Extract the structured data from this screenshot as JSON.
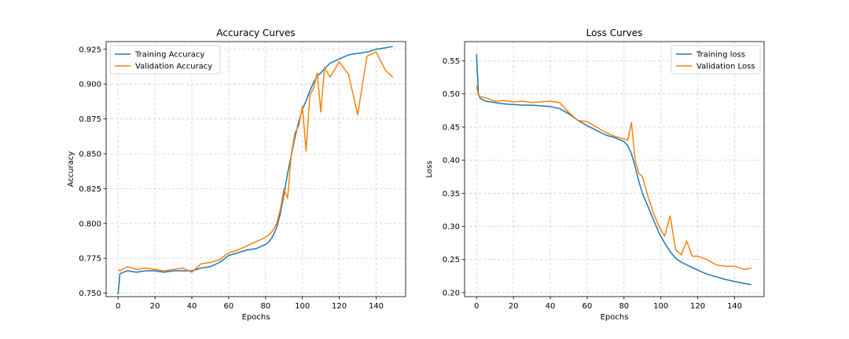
{
  "chart_data": [
    {
      "type": "line",
      "title": "Accuracy Curves",
      "xlabel": "Epochs",
      "ylabel": "Accuracy",
      "xlim": [
        -6.5,
        156
      ],
      "ylim": [
        0.7475,
        0.9305
      ],
      "xticks": [
        0,
        20,
        40,
        60,
        80,
        100,
        120,
        140
      ],
      "yticks": [
        0.75,
        0.775,
        0.8,
        0.825,
        0.85,
        0.875,
        0.9,
        0.925
      ],
      "ytick_labels": [
        "0.750",
        "0.775",
        "0.800",
        "0.825",
        "0.850",
        "0.875",
        "0.900",
        "0.925"
      ],
      "grid": true,
      "legend": "top-left",
      "x": [
        0,
        1,
        5,
        10,
        15,
        20,
        25,
        30,
        35,
        40,
        45,
        50,
        55,
        60,
        65,
        70,
        75,
        80,
        82,
        84,
        86,
        88,
        90,
        92,
        94,
        96,
        98,
        100,
        102,
        104,
        106,
        108,
        110,
        112,
        115,
        120,
        125,
        130,
        135,
        140,
        145,
        149
      ],
      "series": [
        {
          "name": "Training Accuracy",
          "color": "#1f77b4",
          "values": [
            0.749,
            0.764,
            0.766,
            0.765,
            0.766,
            0.766,
            0.765,
            0.766,
            0.766,
            0.766,
            0.768,
            0.769,
            0.772,
            0.777,
            0.779,
            0.781,
            0.782,
            0.785,
            0.787,
            0.791,
            0.797,
            0.807,
            0.821,
            0.836,
            0.849,
            0.862,
            0.873,
            0.882,
            0.888,
            0.895,
            0.901,
            0.906,
            0.908,
            0.911,
            0.915,
            0.918,
            0.921,
            0.922,
            0.923,
            0.925,
            0.926,
            0.927
          ]
        },
        {
          "name": "Validation Accuracy",
          "color": "#ff7f0e",
          "values": [
            0.767,
            0.766,
            0.769,
            0.767,
            0.768,
            0.767,
            0.766,
            0.767,
            0.768,
            0.765,
            0.771,
            0.772,
            0.774,
            0.779,
            0.781,
            0.784,
            0.787,
            0.79,
            0.792,
            0.795,
            0.8,
            0.81,
            0.825,
            0.818,
            0.85,
            0.865,
            0.87,
            0.884,
            0.852,
            0.892,
            0.897,
            0.908,
            0.88,
            0.912,
            0.905,
            0.916,
            0.907,
            0.878,
            0.92,
            0.923,
            0.91,
            0.905
          ]
        }
      ]
    },
    {
      "type": "line",
      "title": "Loss Curves",
      "xlabel": "Epochs",
      "ylabel": "Loss",
      "xlim": [
        -6.5,
        156
      ],
      "ylim": [
        0.194,
        0.579
      ],
      "xticks": [
        0,
        20,
        40,
        60,
        80,
        100,
        120,
        140
      ],
      "yticks": [
        0.2,
        0.25,
        0.3,
        0.35,
        0.4,
        0.45,
        0.5,
        0.55
      ],
      "ytick_labels": [
        "0.20",
        "0.25",
        "0.30",
        "0.35",
        "0.40",
        "0.45",
        "0.50",
        "0.55"
      ],
      "grid": true,
      "legend": "top-right",
      "x": [
        0,
        1,
        2,
        5,
        10,
        15,
        20,
        25,
        30,
        35,
        40,
        45,
        50,
        55,
        60,
        65,
        70,
        75,
        80,
        82,
        84,
        86,
        88,
        90,
        93,
        96,
        99,
        102,
        105,
        108,
        111,
        114,
        117,
        120,
        125,
        130,
        135,
        140,
        145,
        149
      ],
      "series": [
        {
          "name": "Training loss",
          "color": "#1f77b4",
          "values": [
            0.56,
            0.5,
            0.493,
            0.489,
            0.487,
            0.485,
            0.484,
            0.483,
            0.483,
            0.482,
            0.481,
            0.478,
            0.47,
            0.46,
            0.452,
            0.445,
            0.438,
            0.434,
            0.428,
            0.422,
            0.41,
            0.39,
            0.368,
            0.35,
            0.33,
            0.31,
            0.29,
            0.275,
            0.262,
            0.252,
            0.246,
            0.242,
            0.238,
            0.234,
            0.228,
            0.224,
            0.22,
            0.217,
            0.214,
            0.212
          ]
        },
        {
          "name": "Validation Loss",
          "color": "#ff7f0e",
          "values": [
            0.512,
            0.498,
            0.496,
            0.494,
            0.489,
            0.49,
            0.488,
            0.489,
            0.487,
            0.488,
            0.489,
            0.487,
            0.472,
            0.46,
            0.458,
            0.45,
            0.442,
            0.436,
            0.432,
            0.43,
            0.457,
            0.4,
            0.38,
            0.375,
            0.345,
            0.32,
            0.3,
            0.285,
            0.316,
            0.265,
            0.257,
            0.278,
            0.255,
            0.255,
            0.25,
            0.242,
            0.24,
            0.24,
            0.235,
            0.237
          ]
        }
      ]
    }
  ]
}
